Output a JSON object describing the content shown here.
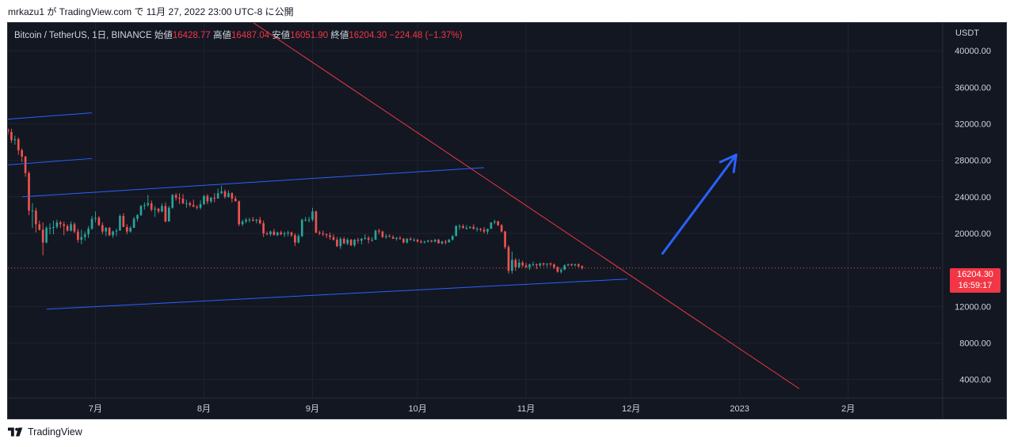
{
  "attribution": "mrkazu1 が TradingView.com で 11月 27, 2022 23:00 UTC-8 に公開",
  "legend": {
    "symbol": "Bitcoin / TetherUS, 1日, BINANCE",
    "open_label": "始値",
    "open": "16428.77",
    "high_label": "高値",
    "high": "16487.04",
    "low_label": "安値",
    "low": "16051.90",
    "close_label": "終値",
    "close": "16204.30",
    "change": "−224.48 (−1.37%)"
  },
  "currency": "USDT",
  "last_price": {
    "price": "16204.30",
    "countdown": "16:59:17"
  },
  "footer": {
    "brand": "TradingView"
  },
  "colors": {
    "background": "#131722",
    "up": "#26a69a",
    "down": "#ef5350",
    "trendline_red": "#f23645",
    "trendline_blue": "#2962ff",
    "arrow": "#2962ff"
  },
  "chart_data": {
    "type": "candlestick",
    "symbol": "Bitcoin / TetherUS",
    "interval": "1日",
    "exchange": "BINANCE",
    "y_ticks": [
      "40000.00",
      "36000.00",
      "32000.00",
      "28000.00",
      "24000.00",
      "20000.00",
      "12000.00",
      "8000.00",
      "4000.00"
    ],
    "y_tick_values": [
      40000,
      36000,
      32000,
      28000,
      24000,
      20000,
      12000,
      8000,
      4000
    ],
    "x_ticks": [
      "7月",
      "8月",
      "9月",
      "10月",
      "11月",
      "12月",
      "2023",
      "2月"
    ],
    "x_tick_dates": [
      "2022-07-01",
      "2022-08-01",
      "2022-09-01",
      "2022-10-01",
      "2022-11-01",
      "2022-12-01",
      "2023-01-01",
      "2023-02-01"
    ],
    "ylim": [
      2500,
      42000
    ],
    "xlim": [
      "2022-06-06",
      "2023-02-28"
    ],
    "grid": true,
    "candle_start": "2022-06-06",
    "candles": [
      [
        31400,
        31500,
        30800,
        31100
      ],
      [
        31100,
        31450,
        29900,
        30200
      ],
      [
        30200,
        30700,
        29700,
        30300
      ],
      [
        30300,
        30500,
        28600,
        29100
      ],
      [
        29100,
        29300,
        27800,
        28400
      ],
      [
        28400,
        28500,
        26200,
        26600
      ],
      [
        26600,
        26800,
        22000,
        22500
      ],
      [
        22500,
        23300,
        20600,
        22500
      ],
      [
        22500,
        22800,
        20100,
        21000
      ],
      [
        21000,
        21400,
        20300,
        20400
      ],
      [
        20400,
        21200,
        17600,
        19000
      ],
      [
        19000,
        20800,
        18900,
        20600
      ],
      [
        20600,
        21100,
        19900,
        20600
      ],
      [
        20600,
        21400,
        19900,
        20700
      ],
      [
        20700,
        21500,
        20500,
        21200
      ],
      [
        21200,
        21400,
        20600,
        21000
      ],
      [
        21000,
        21300,
        19800,
        20800
      ],
      [
        20800,
        21000,
        20200,
        20300
      ],
      [
        20300,
        21300,
        20200,
        21000
      ],
      [
        21000,
        21200,
        20000,
        20200
      ],
      [
        20200,
        20500,
        19000,
        19300
      ],
      [
        19300,
        20400,
        18800,
        19600
      ],
      [
        19600,
        20200,
        19200,
        19900
      ],
      [
        19900,
        20800,
        19500,
        20500
      ],
      [
        20500,
        21900,
        20400,
        21600
      ],
      [
        21600,
        22400,
        21200,
        21700
      ],
      [
        21700,
        21900,
        20800,
        20900
      ],
      [
        20900,
        21200,
        19900,
        20200
      ],
      [
        20200,
        20700,
        19700,
        20600
      ],
      [
        20600,
        20700,
        19700,
        19800
      ],
      [
        19800,
        20300,
        19500,
        20200
      ],
      [
        20200,
        20500,
        19700,
        20300
      ],
      [
        20300,
        22100,
        20300,
        21900
      ],
      [
        21900,
        22200,
        20700,
        20700
      ],
      [
        20700,
        21000,
        19900,
        20200
      ],
      [
        20200,
        20800,
        20100,
        20600
      ],
      [
        20600,
        21800,
        20600,
        21600
      ],
      [
        21600,
        22100,
        21300,
        22000
      ],
      [
        22000,
        23100,
        21900,
        23000
      ],
      [
        23000,
        23400,
        22600,
        23100
      ],
      [
        23100,
        24200,
        22900,
        23300
      ],
      [
        23300,
        23600,
        22400,
        22600
      ],
      [
        22600,
        23000,
        21800,
        22700
      ],
      [
        22700,
        22800,
        22200,
        22400
      ],
      [
        22400,
        23300,
        22300,
        23000
      ],
      [
        23000,
        23400,
        21200,
        21300
      ],
      [
        21300,
        23000,
        21300,
        22800
      ],
      [
        22800,
        24300,
        22700,
        24200
      ],
      [
        24200,
        24400,
        23600,
        23900
      ],
      [
        23900,
        24400,
        23200,
        23800
      ],
      [
        23800,
        24300,
        23200,
        23300
      ],
      [
        23300,
        23700,
        22800,
        23300
      ],
      [
        23300,
        23500,
        22900,
        23100
      ],
      [
        23100,
        23700,
        22900,
        22900
      ],
      [
        22900,
        23100,
        22600,
        22800
      ],
      [
        22800,
        23600,
        22600,
        23200
      ],
      [
        23200,
        24200,
        23100,
        24100
      ],
      [
        24100,
        24300,
        23200,
        23500
      ],
      [
        23500,
        24000,
        23300,
        23900
      ],
      [
        23900,
        24400,
        23400,
        23800
      ],
      [
        23800,
        24900,
        23800,
        24400
      ],
      [
        24400,
        25200,
        24300,
        24600
      ],
      [
        24600,
        24800,
        23800,
        24000
      ],
      [
        24000,
        24700,
        23900,
        24400
      ],
      [
        24400,
        24500,
        23400,
        23800
      ],
      [
        23800,
        24100,
        23600,
        23500
      ],
      [
        23500,
        23600,
        20800,
        21000
      ],
      [
        21000,
        21500,
        20800,
        21300
      ],
      [
        21300,
        21700,
        21100,
        21500
      ],
      [
        21500,
        21700,
        21200,
        21500
      ],
      [
        21500,
        21800,
        21300,
        21400
      ],
      [
        21400,
        21600,
        21100,
        21500
      ],
      [
        21500,
        21800,
        21000,
        21100
      ],
      [
        21100,
        21400,
        19600,
        20000
      ],
      [
        20000,
        20200,
        19800,
        19900
      ],
      [
        19900,
        20300,
        19700,
        20200
      ],
      [
        20200,
        20500,
        19800,
        19800
      ],
      [
        19800,
        20200,
        19700,
        20100
      ],
      [
        20100,
        20300,
        19800,
        19900
      ],
      [
        19900,
        20200,
        19600,
        20000
      ],
      [
        20000,
        20300,
        19700,
        20100
      ],
      [
        20100,
        20200,
        19600,
        19800
      ],
      [
        19800,
        20000,
        18600,
        19000
      ],
      [
        19000,
        19900,
        18900,
        19700
      ],
      [
        19700,
        21600,
        19600,
        21500
      ],
      [
        21500,
        21800,
        21300,
        21500
      ],
      [
        21500,
        21800,
        21200,
        21500
      ],
      [
        21500,
        22800,
        21300,
        22400
      ],
      [
        22400,
        22500,
        20000,
        20100
      ],
      [
        20100,
        20300,
        19800,
        20000
      ],
      [
        20000,
        20300,
        19700,
        19900
      ],
      [
        19900,
        20000,
        19500,
        19800
      ],
      [
        19800,
        20100,
        19300,
        19600
      ],
      [
        19600,
        19900,
        19200,
        19300
      ],
      [
        19300,
        19600,
        18500,
        18600
      ],
      [
        18600,
        19600,
        18300,
        19400
      ],
      [
        19400,
        19600,
        18800,
        18900
      ],
      [
        18900,
        19500,
        18700,
        19300
      ],
      [
        19300,
        19400,
        18600,
        18700
      ],
      [
        18700,
        19400,
        18500,
        19300
      ],
      [
        19300,
        19500,
        18900,
        19200
      ],
      [
        19200,
        19500,
        18800,
        19400
      ],
      [
        19400,
        19900,
        19300,
        19500
      ],
      [
        19500,
        19700,
        18900,
        19300
      ],
      [
        19300,
        19600,
        19100,
        19300
      ],
      [
        19300,
        20400,
        19300,
        20300
      ],
      [
        20300,
        20500,
        19900,
        20200
      ],
      [
        20200,
        20300,
        19500,
        19600
      ],
      [
        19600,
        19900,
        19400,
        19700
      ],
      [
        19700,
        19900,
        19600,
        19600
      ],
      [
        19600,
        19800,
        19400,
        19400
      ],
      [
        19400,
        19600,
        19200,
        19500
      ],
      [
        19500,
        19700,
        19300,
        19400
      ],
      [
        19400,
        19500,
        18900,
        19000
      ],
      [
        19000,
        19500,
        18900,
        19400
      ],
      [
        19400,
        19600,
        19200,
        19300
      ],
      [
        19300,
        19500,
        19100,
        19300
      ],
      [
        19300,
        19400,
        19000,
        19100
      ],
      [
        19100,
        19300,
        18900,
        19000
      ],
      [
        19000,
        19200,
        18900,
        19100
      ],
      [
        19100,
        19300,
        19000,
        19200
      ],
      [
        19200,
        19300,
        19000,
        19100
      ],
      [
        19100,
        19400,
        19000,
        19300
      ],
      [
        19300,
        19400,
        18900,
        18900
      ],
      [
        18900,
        19200,
        18800,
        19100
      ],
      [
        19100,
        19300,
        18800,
        19000
      ],
      [
        19000,
        19400,
        19000,
        19300
      ],
      [
        19300,
        19800,
        19200,
        19700
      ],
      [
        19700,
        20900,
        19700,
        20800
      ],
      [
        20800,
        21000,
        20400,
        20800
      ],
      [
        20800,
        21000,
        20500,
        20600
      ],
      [
        20600,
        20900,
        20400,
        20600
      ],
      [
        20600,
        20800,
        20500,
        20700
      ],
      [
        20700,
        21000,
        20400,
        20500
      ],
      [
        20500,
        20700,
        20200,
        20500
      ],
      [
        20500,
        20600,
        20200,
        20400
      ],
      [
        20400,
        20700,
        20000,
        20200
      ],
      [
        20200,
        20500,
        19900,
        20500
      ],
      [
        20500,
        21200,
        20500,
        21200
      ],
      [
        21200,
        21500,
        21000,
        21300
      ],
      [
        21300,
        21400,
        20800,
        20900
      ],
      [
        20900,
        21000,
        20100,
        20200
      ],
      [
        20200,
        20300,
        18300,
        18500
      ],
      [
        18500,
        18700,
        15600,
        15900
      ],
      [
        15900,
        18000,
        15600,
        17100
      ],
      [
        17100,
        17300,
        15900,
        16300
      ],
      [
        16300,
        17200,
        16200,
        16800
      ],
      [
        16800,
        17000,
        16300,
        16500
      ],
      [
        16500,
        16800,
        16200,
        16300
      ],
      [
        16300,
        16700,
        16000,
        16600
      ],
      [
        16600,
        16900,
        16400,
        16600
      ],
      [
        16600,
        16700,
        16100,
        16500
      ],
      [
        16500,
        16800,
        16300,
        16700
      ],
      [
        16700,
        16800,
        16400,
        16600
      ],
      [
        16600,
        16700,
        16300,
        16700
      ],
      [
        16700,
        16800,
        16400,
        16600
      ],
      [
        16600,
        16700,
        16100,
        16300
      ],
      [
        16300,
        16400,
        15700,
        15800
      ],
      [
        15800,
        16200,
        15600,
        16000
      ],
      [
        16000,
        16600,
        16000,
        16500
      ],
      [
        16500,
        16700,
        16400,
        16600
      ],
      [
        16600,
        16700,
        16400,
        16500
      ],
      [
        16500,
        16700,
        16400,
        16600
      ],
      [
        16600,
        16700,
        16300,
        16400
      ],
      [
        16400,
        16500,
        16050,
        16204
      ]
    ],
    "drawings": [
      {
        "type": "trendline",
        "color": "#f23645",
        "from": [
          "2022-06-18",
          58000
        ],
        "to": [
          "2023-01-18",
          3000
        ]
      },
      {
        "type": "trendline",
        "color": "#2962ff",
        "from": [
          "2022-06-17",
          11700
        ],
        "to": [
          "2022-11-30",
          15000
        ]
      },
      {
        "type": "trendline",
        "color": "#2962ff",
        "from": [
          "2022-06-10",
          24000
        ],
        "to": [
          "2022-10-20",
          27200
        ]
      },
      {
        "type": "trendline",
        "color": "#2962ff",
        "from": [
          "2022-06-06",
          27500
        ],
        "to": [
          "2022-06-30",
          28200
        ]
      },
      {
        "type": "trendline",
        "color": "#2962ff",
        "from": [
          "2022-06-06",
          32500
        ],
        "to": [
          "2022-06-30",
          33200
        ]
      },
      {
        "type": "arrow",
        "color": "#2962ff",
        "from": [
          "2022-12-10",
          17800
        ],
        "to": [
          "2022-12-31",
          28600
        ]
      }
    ]
  }
}
